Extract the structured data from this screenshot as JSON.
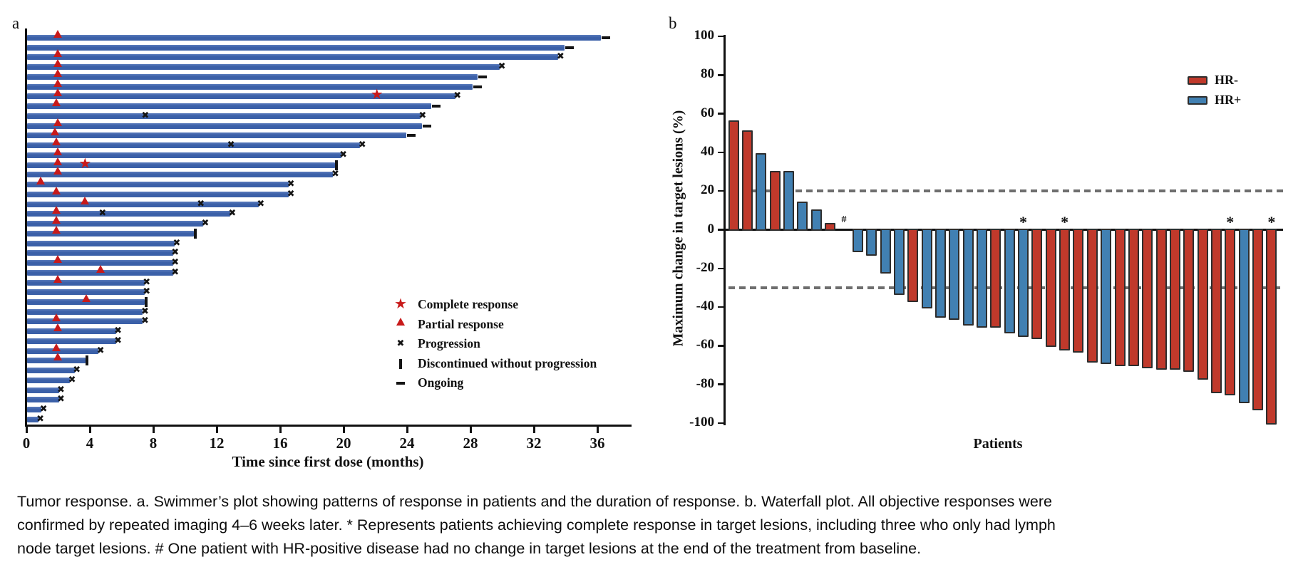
{
  "figure": {
    "panel_a_label": "a",
    "panel_b_label": "b",
    "caption_lines": [
      "Tumor response. a. Swimmer’s plot showing patterns of response in patients and the duration of response. b. Waterfall plot. All objective responses were",
      "confirmed by repeated imaging 4–6 weeks later. * Represents patients achieving complete response in target lesions, including three who only had lymph",
      "node target lesions. # One patient with HR-positive disease had no change in target lesions at the end of the treatment from baseline."
    ]
  },
  "colors": {
    "swimmer_bar": "#3b60a8",
    "swimmer_bar_light": "#5b7cbd",
    "response_red": "#c81a1a",
    "marker_black": "#141414",
    "hr_neg": "#c0392b",
    "hr_pos": "#4180b2",
    "bar_outline": "#2d2d2d",
    "dashed_line": "#6e6e6e",
    "axis": "#111111"
  },
  "chart_data": [
    {
      "type": "swimmer",
      "xlabel": "Time since first dose (months)",
      "xlim": [
        0,
        38
      ],
      "xticks": [
        0,
        4,
        8,
        12,
        16,
        20,
        24,
        28,
        32,
        36
      ],
      "legend": [
        {
          "marker": "star",
          "label": "Complete response"
        },
        {
          "marker": "triangle",
          "label": "Partial response"
        },
        {
          "marker": "x",
          "label": "Progression"
        },
        {
          "marker": "vbar",
          "label": "Discontinued without progression"
        },
        {
          "marker": "dash",
          "label": "Ongoing"
        }
      ],
      "patients": [
        {
          "duration": 36.2,
          "end": "ongoing",
          "events": [
            {
              "type": "triangle",
              "t": 2.0
            }
          ]
        },
        {
          "duration": 33.9,
          "end": "ongoing",
          "events": []
        },
        {
          "duration": 33.5,
          "end": "progression",
          "events": [
            {
              "type": "triangle",
              "t": 2.0
            }
          ]
        },
        {
          "duration": 29.8,
          "end": "progression",
          "events": [
            {
              "type": "triangle",
              "t": 2.0
            }
          ]
        },
        {
          "duration": 28.4,
          "end": "ongoing",
          "events": [
            {
              "type": "triangle",
              "t": 2.0
            }
          ]
        },
        {
          "duration": 28.1,
          "end": "ongoing",
          "events": [
            {
              "type": "triangle",
              "t": 2.0
            }
          ]
        },
        {
          "duration": 27.0,
          "end": "progression",
          "events": [
            {
              "type": "triangle",
              "t": 2.0
            },
            {
              "type": "star",
              "t": 22.1
            }
          ]
        },
        {
          "duration": 25.5,
          "end": "ongoing",
          "events": [
            {
              "type": "triangle",
              "t": 1.9
            }
          ]
        },
        {
          "duration": 24.8,
          "end": "progression",
          "events": [
            {
              "type": "x",
              "t": 7.5
            }
          ]
        },
        {
          "duration": 24.9,
          "end": "ongoing",
          "events": [
            {
              "type": "triangle",
              "t": 2.0
            }
          ]
        },
        {
          "duration": 23.9,
          "end": "ongoing",
          "events": [
            {
              "type": "triangle",
              "t": 1.8
            }
          ]
        },
        {
          "duration": 21.0,
          "end": "progression",
          "events": [
            {
              "type": "triangle",
              "t": 1.9
            },
            {
              "type": "x",
              "t": 12.9
            }
          ]
        },
        {
          "duration": 19.8,
          "end": "progression",
          "events": [
            {
              "type": "triangle",
              "t": 2.0
            }
          ]
        },
        {
          "duration": 19.4,
          "end": "discontinued",
          "events": [
            {
              "type": "triangle",
              "t": 2.0
            },
            {
              "type": "star",
              "t": 3.7
            }
          ]
        },
        {
          "duration": 19.3,
          "end": "progression",
          "events": [
            {
              "type": "triangle",
              "t": 2.0
            }
          ]
        },
        {
          "duration": 16.5,
          "end": "progression",
          "events": [
            {
              "type": "triangle",
              "t": 0.9
            }
          ]
        },
        {
          "duration": 16.5,
          "end": "progression",
          "events": [
            {
              "type": "triangle",
              "t": 1.9
            }
          ]
        },
        {
          "duration": 14.6,
          "end": "progression",
          "events": [
            {
              "type": "triangle",
              "t": 3.7
            },
            {
              "type": "x",
              "t": 11.0
            }
          ]
        },
        {
          "duration": 12.8,
          "end": "progression",
          "events": [
            {
              "type": "triangle",
              "t": 1.9
            },
            {
              "type": "x",
              "t": 4.8
            }
          ]
        },
        {
          "duration": 11.1,
          "end": "progression",
          "events": [
            {
              "type": "triangle",
              "t": 1.9
            }
          ]
        },
        {
          "duration": 10.5,
          "end": "discontinued",
          "events": [
            {
              "type": "triangle",
              "t": 1.9
            }
          ]
        },
        {
          "duration": 9.3,
          "end": "progression",
          "events": []
        },
        {
          "duration": 9.2,
          "end": "progression",
          "events": []
        },
        {
          "duration": 9.2,
          "end": "progression",
          "events": [
            {
              "type": "triangle",
              "t": 2.0
            }
          ]
        },
        {
          "duration": 9.2,
          "end": "progression",
          "events": [
            {
              "type": "triangle",
              "t": 4.7
            }
          ]
        },
        {
          "duration": 7.4,
          "end": "progression",
          "events": [
            {
              "type": "triangle",
              "t": 2.0
            }
          ]
        },
        {
          "duration": 7.4,
          "end": "progression",
          "events": []
        },
        {
          "duration": 7.4,
          "end": "discontinued",
          "events": [
            {
              "type": "triangle",
              "t": 3.8
            }
          ]
        },
        {
          "duration": 7.3,
          "end": "progression",
          "events": []
        },
        {
          "duration": 7.3,
          "end": "progression",
          "events": [
            {
              "type": "triangle",
              "t": 1.9
            }
          ]
        },
        {
          "duration": 5.6,
          "end": "progression",
          "events": [
            {
              "type": "triangle",
              "t": 2.0
            }
          ]
        },
        {
          "duration": 5.6,
          "end": "progression",
          "events": []
        },
        {
          "duration": 4.5,
          "end": "progression",
          "events": [
            {
              "type": "triangle",
              "t": 1.9
            }
          ]
        },
        {
          "duration": 3.7,
          "end": "discontinued",
          "events": [
            {
              "type": "triangle",
              "t": 2.0
            }
          ]
        },
        {
          "duration": 3.0,
          "end": "progression",
          "events": []
        },
        {
          "duration": 2.7,
          "end": "progression",
          "events": []
        },
        {
          "duration": 2.0,
          "end": "progression",
          "events": []
        },
        {
          "duration": 2.0,
          "end": "progression",
          "events": []
        },
        {
          "duration": 0.9,
          "end": "progression",
          "events": []
        },
        {
          "duration": 0.7,
          "end": "progression",
          "events": []
        }
      ]
    },
    {
      "type": "waterfall",
      "ylabel": "Maximum change in target lesions (%)",
      "xlabel": "Patients",
      "ylim": [
        -100,
        100
      ],
      "yticks": [
        100,
        80,
        60,
        40,
        20,
        0,
        -20,
        -40,
        -60,
        -80,
        -100
      ],
      "reference_lines": [
        20,
        -30
      ],
      "legend": [
        {
          "label": "HR-",
          "group": "HR-"
        },
        {
          "label": "HR+",
          "group": "HR+"
        }
      ],
      "bars": [
        {
          "value": 56,
          "group": "HR-"
        },
        {
          "value": 51,
          "group": "HR-"
        },
        {
          "value": 39,
          "group": "HR+"
        },
        {
          "value": 30,
          "group": "HR-"
        },
        {
          "value": 30,
          "group": "HR+"
        },
        {
          "value": 14,
          "group": "HR+"
        },
        {
          "value": 10,
          "group": "HR+"
        },
        {
          "value": 3,
          "group": "HR-"
        },
        {
          "value": 0,
          "group": "HR+",
          "annotation": "#"
        },
        {
          "value": -11,
          "group": "HR+"
        },
        {
          "value": -13,
          "group": "HR+"
        },
        {
          "value": -22,
          "group": "HR+"
        },
        {
          "value": -33,
          "group": "HR+"
        },
        {
          "value": -37,
          "group": "HR-"
        },
        {
          "value": -40,
          "group": "HR+"
        },
        {
          "value": -45,
          "group": "HR+"
        },
        {
          "value": -46,
          "group": "HR+"
        },
        {
          "value": -49,
          "group": "HR+"
        },
        {
          "value": -50,
          "group": "HR+"
        },
        {
          "value": -50,
          "group": "HR-"
        },
        {
          "value": -53,
          "group": "HR+"
        },
        {
          "value": -55,
          "group": "HR+",
          "annotation": "*"
        },
        {
          "value": -56,
          "group": "HR-"
        },
        {
          "value": -60,
          "group": "HR-"
        },
        {
          "value": -62,
          "group": "HR-",
          "annotation": "*"
        },
        {
          "value": -63,
          "group": "HR-"
        },
        {
          "value": -68,
          "group": "HR-"
        },
        {
          "value": -69,
          "group": "HR+"
        },
        {
          "value": -70,
          "group": "HR-"
        },
        {
          "value": -70,
          "group": "HR-"
        },
        {
          "value": -71,
          "group": "HR-"
        },
        {
          "value": -72,
          "group": "HR-"
        },
        {
          "value": -72,
          "group": "HR-"
        },
        {
          "value": -73,
          "group": "HR-"
        },
        {
          "value": -77,
          "group": "HR-"
        },
        {
          "value": -84,
          "group": "HR-"
        },
        {
          "value": -85,
          "group": "HR-",
          "annotation": "*"
        },
        {
          "value": -89,
          "group": "HR+"
        },
        {
          "value": -93,
          "group": "HR-"
        },
        {
          "value": -100,
          "group": "HR-",
          "annotation": "*"
        }
      ]
    }
  ]
}
